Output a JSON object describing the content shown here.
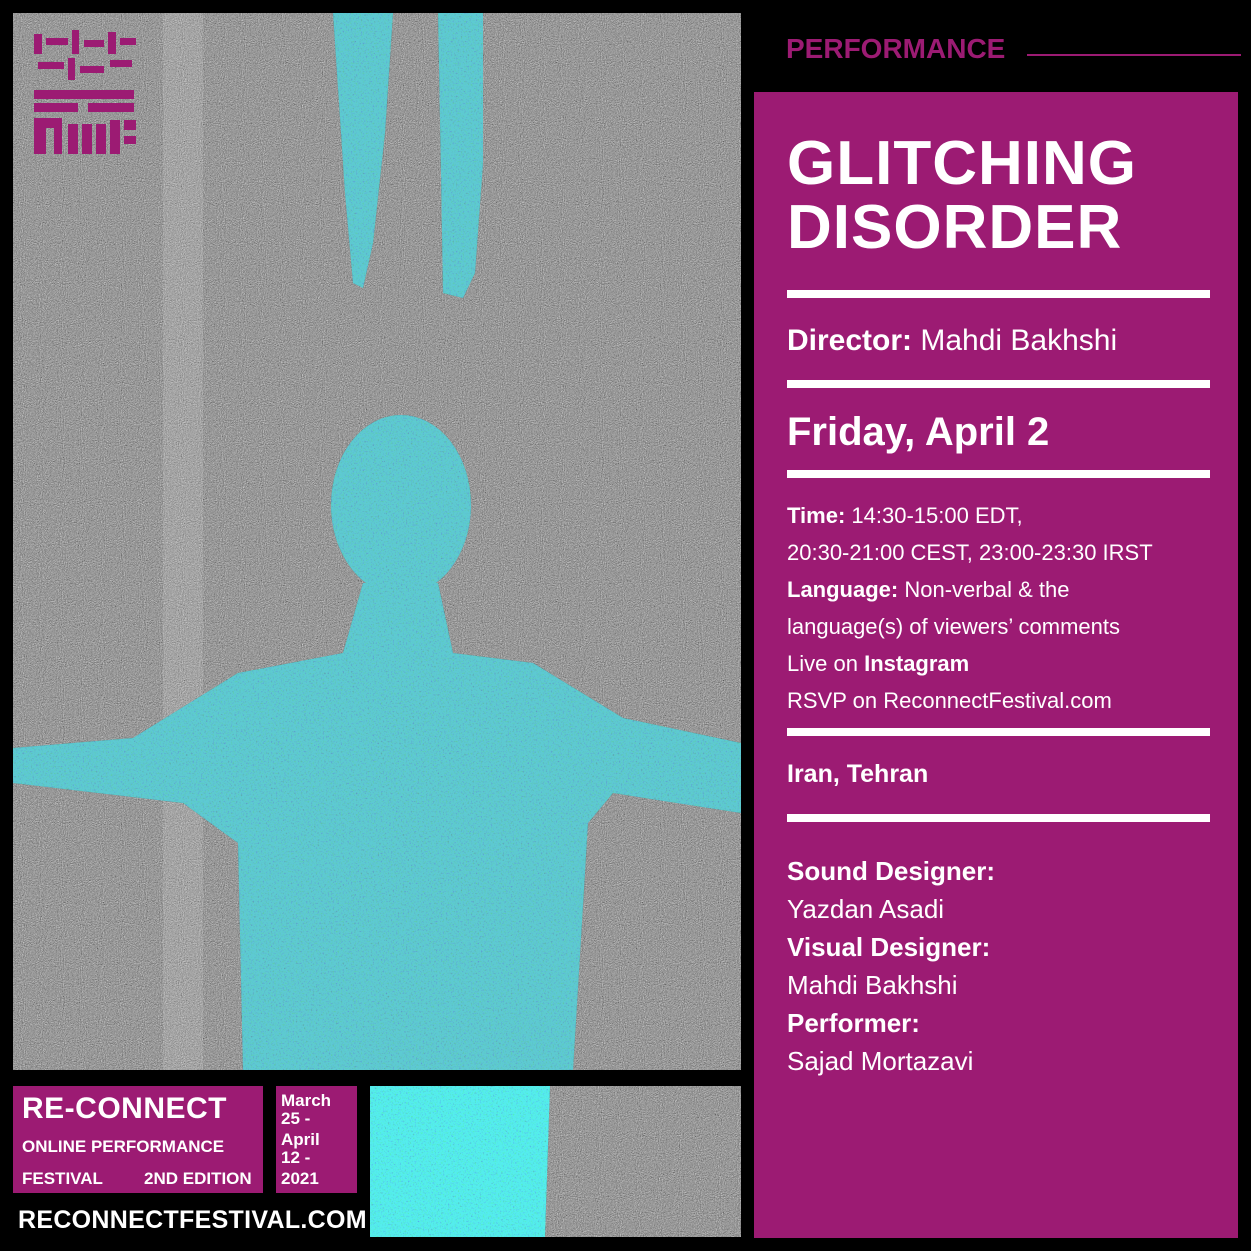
{
  "logo": {
    "persian_text": "ارتباط مجدد",
    "latin_text": "RECONNECT"
  },
  "festival": {
    "name": "RE-CONNECT",
    "subtitle": "ONLINE PERFORMANCE",
    "line3_left": "FESTIVAL",
    "edition": "2ND EDITION",
    "dates": [
      "March",
      "25 -",
      "April",
      "12 -",
      "2021"
    ],
    "website": "RECONNECTFESTIVAL.COM"
  },
  "category": "PERFORMANCE",
  "title_lines": [
    "GLITCHING",
    "DISORDER"
  ],
  "director": {
    "label": "Director:",
    "name": "Mahdi Bakhshi"
  },
  "date": "Friday, April 2",
  "info": {
    "time_label": "Time:",
    "time_line1": "14:30-15:00 EDT,",
    "time_line2": "20:30-21:00 CEST, 23:00-23:30 IRST",
    "language_label": "Language:",
    "language_line1": "Non-verbal & the",
    "language_line2": "language(s) of viewers’ comments",
    "live_prefix": "Live on",
    "live_platform": "Instagram",
    "rsvp": "RSVP on ReconnectFestival.com"
  },
  "location": "Iran, Tehran",
  "credits": [
    {
      "role": "Sound Designer:",
      "name": "Yazdan Asadi"
    },
    {
      "role": "Visual Designer:",
      "name": "Mahdi Bakhshi"
    },
    {
      "role": "Performer:",
      "name": "Sajad Mortazavi"
    }
  ],
  "colors": {
    "accent": "#9c1b73",
    "background": "#000000",
    "text": "#ffffff"
  }
}
